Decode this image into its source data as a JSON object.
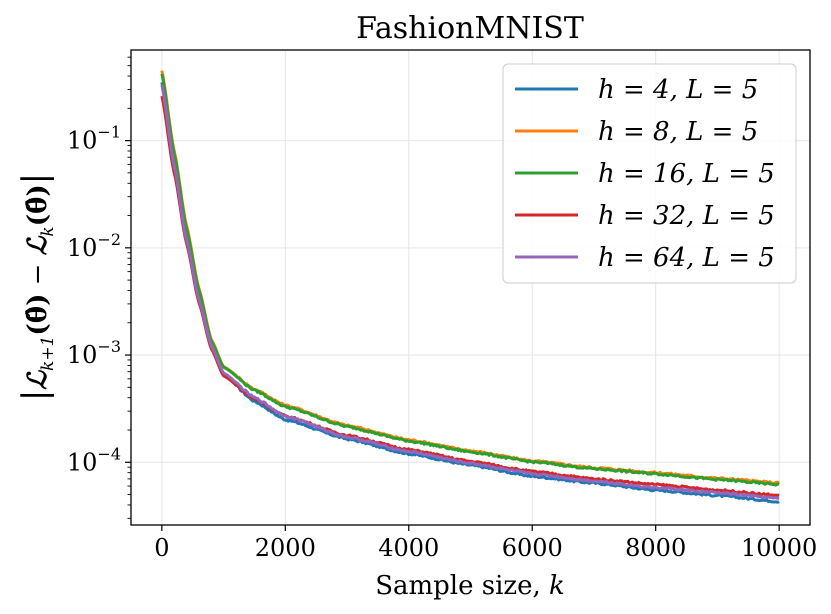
{
  "chart_data": {
    "type": "line",
    "title": "FashionMNIST",
    "xlabel": "Sample size, k",
    "ylabel": "|L_{k+1}(θ̂) − L_k(θ̂)|",
    "yscale": "log",
    "xlim": [
      -500,
      10500
    ],
    "ylim": [
      2.6e-05,
      0.7
    ],
    "xticks": [
      0,
      2000,
      4000,
      6000,
      8000,
      10000
    ],
    "xtick_labels": [
      "0",
      "2000",
      "4000",
      "6000",
      "8000",
      "10000"
    ],
    "yticks": [
      0.0001,
      0.001,
      0.01,
      0.1
    ],
    "ytick_labels": [
      {
        "base": "10",
        "exp": "−4"
      },
      {
        "base": "10",
        "exp": "−3"
      },
      {
        "base": "10",
        "exp": "−2"
      },
      {
        "base": "10",
        "exp": "−1"
      }
    ],
    "grid": true,
    "legend_position": "top-right",
    "series": [
      {
        "name": "h = 4, L = 5",
        "color": "#1f77b4",
        "x": [
          0,
          200,
          400,
          600,
          800,
          1000,
          1500,
          2000,
          3000,
          4000,
          5000,
          6000,
          7000,
          8000,
          9000,
          10000
        ],
        "values": [
          0.35,
          0.06,
          0.012,
          0.0033,
          0.0012,
          0.00065,
          0.00037,
          0.00025,
          0.000165,
          0.00012,
          9.4e-05,
          7.4e-05,
          6.4e-05,
          5.5e-05,
          4.9e-05,
          4.3e-05
        ]
      },
      {
        "name": "h = 8, L = 5",
        "color": "#ff7f0e",
        "x": [
          0,
          200,
          400,
          600,
          800,
          1000,
          1500,
          2000,
          3000,
          4000,
          5000,
          6000,
          7000,
          8000,
          9000,
          10000
        ],
        "values": [
          0.45,
          0.08,
          0.016,
          0.0042,
          0.0014,
          0.00078,
          0.00048,
          0.00034,
          0.00022,
          0.000162,
          0.000128,
          0.000103,
          8.9e-05,
          8e-05,
          7.1e-05,
          6.4e-05
        ]
      },
      {
        "name": "h = 16, L = 5",
        "color": "#2ca02c",
        "x": [
          0,
          200,
          400,
          600,
          800,
          1000,
          1500,
          2000,
          3000,
          4000,
          5000,
          6000,
          7000,
          8000,
          9000,
          10000
        ],
        "values": [
          0.42,
          0.075,
          0.015,
          0.004,
          0.00135,
          0.00077,
          0.00047,
          0.00033,
          0.000215,
          0.000158,
          0.000125,
          0.000101,
          8.7e-05,
          7.8e-05,
          6.9e-05,
          6.2e-05
        ]
      },
      {
        "name": "h = 32, L = 5",
        "color": "#d62728",
        "x": [
          0,
          200,
          400,
          600,
          800,
          1000,
          1500,
          2000,
          3000,
          4000,
          5000,
          6000,
          7000,
          8000,
          9000,
          10000
        ],
        "values": [
          0.26,
          0.05,
          0.011,
          0.0031,
          0.00115,
          0.00064,
          0.00039,
          0.00027,
          0.000178,
          0.000131,
          0.000102,
          8.2e-05,
          7e-05,
          6.2e-05,
          5.5e-05,
          4.9e-05
        ]
      },
      {
        "name": "h = 64, L = 5",
        "color": "#9467bd",
        "x": [
          0,
          200,
          400,
          600,
          800,
          1000,
          1500,
          2000,
          3000,
          4000,
          5000,
          6000,
          7000,
          8000,
          9000,
          10000
        ],
        "values": [
          0.33,
          0.058,
          0.0118,
          0.0033,
          0.00122,
          0.00068,
          0.0004,
          0.00027,
          0.000172,
          0.000126,
          9.8e-05,
          7.8e-05,
          6.7e-05,
          5.8e-05,
          5.2e-05,
          4.6e-05
        ]
      }
    ]
  }
}
